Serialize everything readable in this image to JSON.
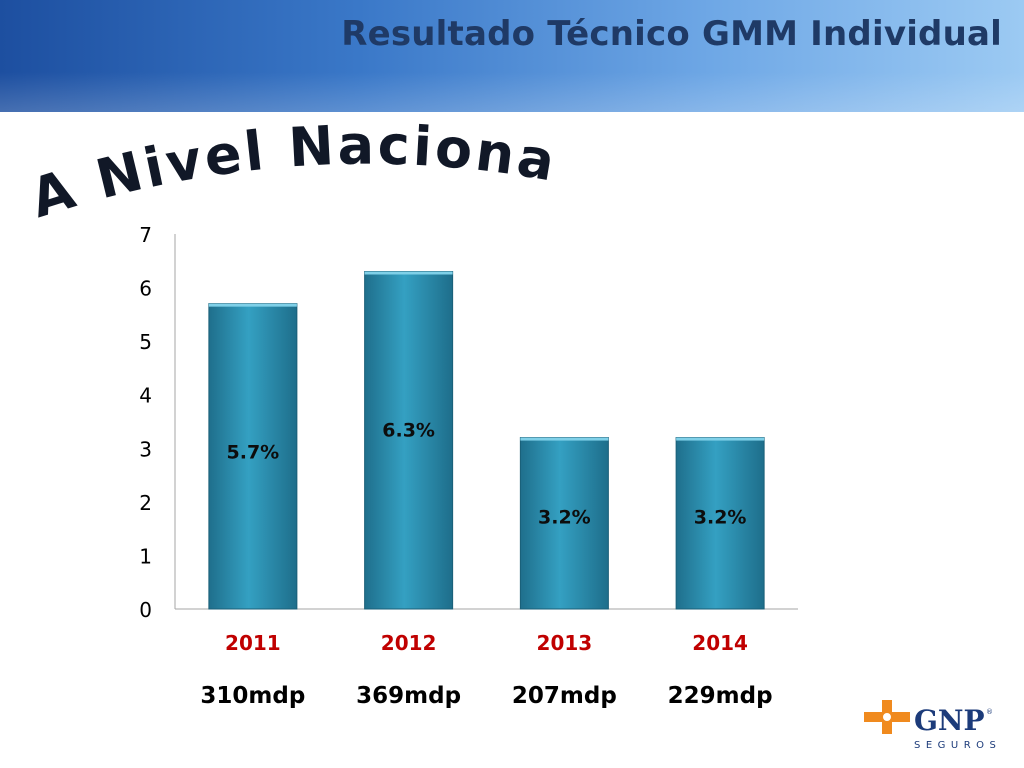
{
  "header": {
    "title": "Resultado Técnico GMM Individual"
  },
  "headline": "A Nivel Nacional",
  "colors": {
    "bar": "#2a8eae",
    "year_label": "#c00000",
    "headline": "#111827",
    "logo_orange": "#f08a1e",
    "logo_blue": "#1c3b7a"
  },
  "chart_data": {
    "type": "bar",
    "categories": [
      "2011",
      "2012",
      "2013",
      "2014"
    ],
    "values": [
      5.7,
      6.3,
      3.2,
      3.2
    ],
    "data_labels": [
      "5.7%",
      "6.3%",
      "3.2%",
      "3.2%"
    ],
    "sub_labels": [
      "310mdp",
      "369mdp",
      "207mdp",
      "229mdp"
    ],
    "yticks": [
      "0",
      "1",
      "2",
      "3",
      "4",
      "5",
      "6",
      "7"
    ],
    "ylim": [
      0,
      7
    ],
    "grid": false,
    "legend": false
  },
  "logo": {
    "name": "GNP",
    "tagline": "SEGUROS"
  }
}
